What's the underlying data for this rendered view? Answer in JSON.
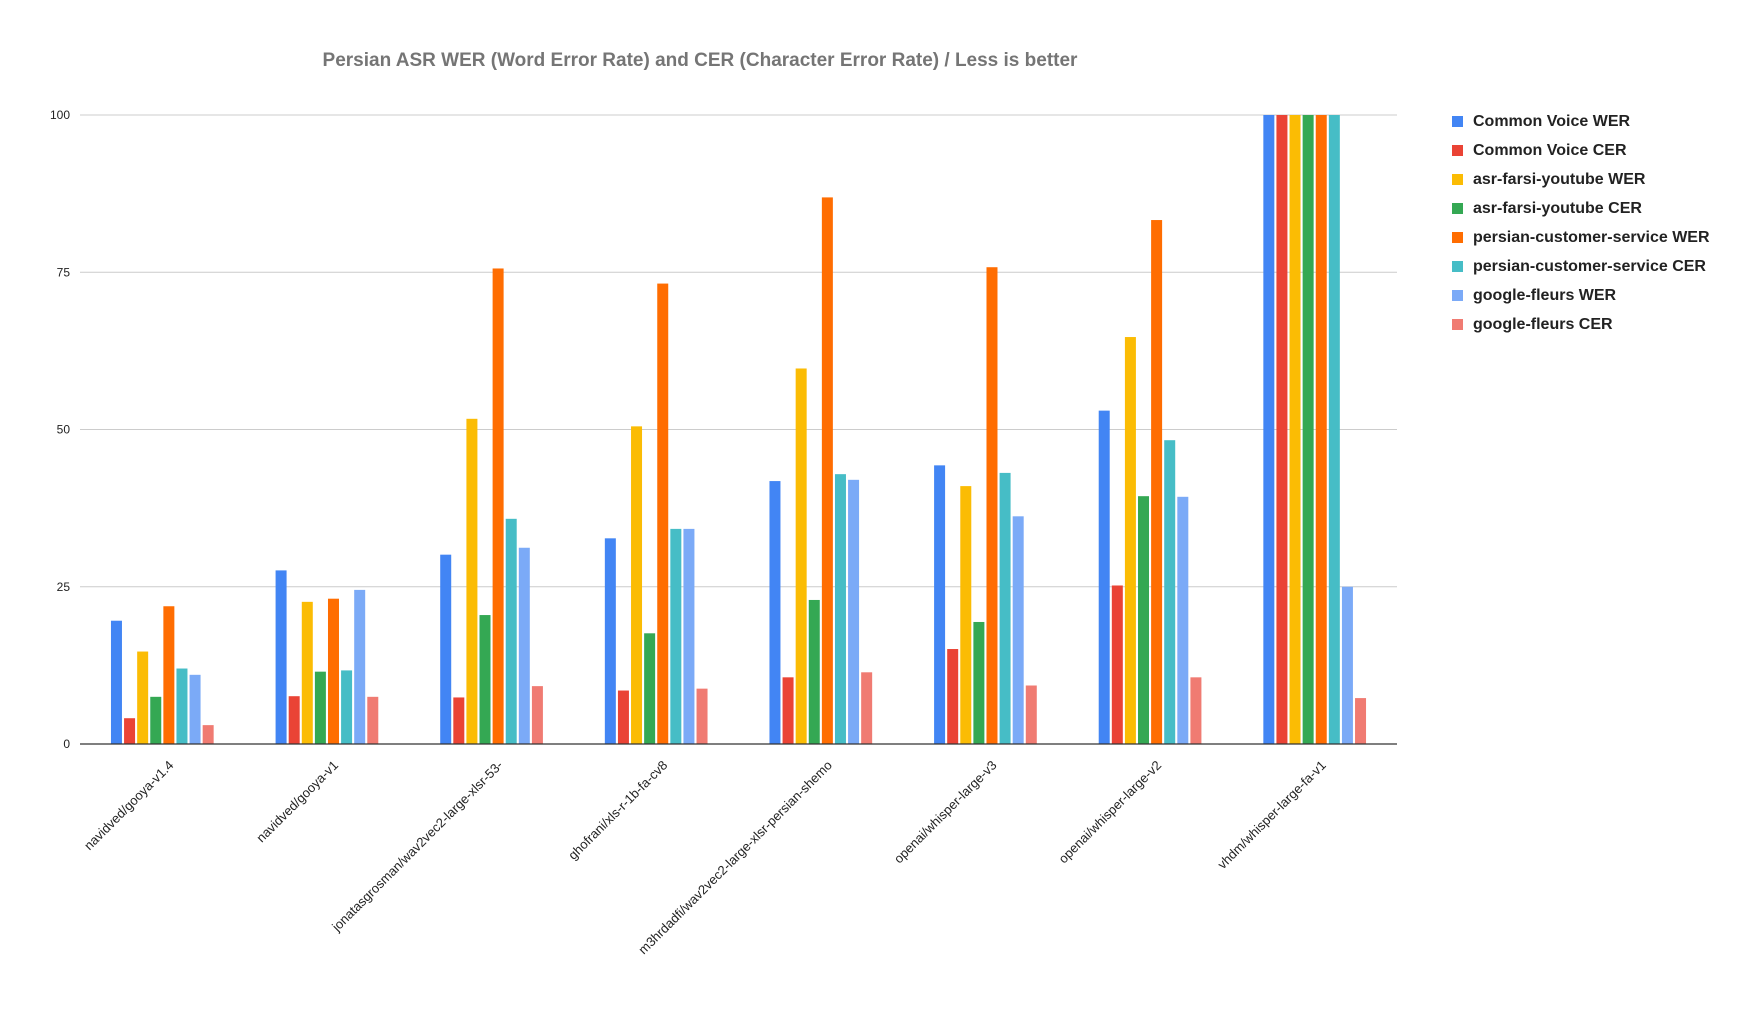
{
  "chart_data": {
    "type": "bar",
    "title": "Persian ASR WER (Word Error Rate) and CER (Character Error Rate) / Less is better",
    "xlabel": "",
    "ylabel": "",
    "ylim": [
      0,
      100
    ],
    "yticks": [
      0,
      25,
      50,
      75,
      100
    ],
    "grid": true,
    "legend_position": "right",
    "categories": [
      "navidved/gooya-v1.4",
      "navidved/gooya-v1",
      "jonatasgrosman/wav2vec2-large-xlsr-53-",
      "ghofrani/xls-r-1b-fa-cv8",
      "m3hrdadfi/wav2vec2-large-xlsr-persian-shemo",
      "openai/whisper-large-v3",
      "openai/whisper-large-v2",
      "vhdm/whisper-large-fa-v1"
    ],
    "series": [
      {
        "name": "Common Voice WER",
        "color": "#4285f4",
        "values": [
          19.6,
          27.6,
          30.1,
          32.7,
          41.8,
          44.3,
          53.0,
          100
        ]
      },
      {
        "name": "Common Voice CER",
        "color": "#ea4335",
        "values": [
          4.1,
          7.6,
          7.4,
          8.5,
          10.6,
          15.1,
          25.2,
          100
        ]
      },
      {
        "name": "asr-farsi-youtube WER",
        "color": "#fbbc04",
        "values": [
          14.7,
          22.6,
          51.7,
          50.5,
          59.7,
          41.0,
          64.7,
          100
        ]
      },
      {
        "name": "asr-farsi-youtube CER",
        "color": "#34a853",
        "values": [
          7.5,
          11.5,
          20.5,
          17.6,
          22.9,
          19.4,
          39.4,
          100
        ]
      },
      {
        "name": "persian-customer-service WER",
        "color": "#ff6d01",
        "values": [
          21.9,
          23.1,
          75.6,
          73.2,
          86.9,
          75.8,
          83.3,
          100
        ]
      },
      {
        "name": "persian-customer-service CER",
        "color": "#46bdc6",
        "values": [
          12.0,
          11.7,
          35.8,
          34.2,
          42.9,
          43.1,
          48.3,
          100
        ]
      },
      {
        "name": "google-fleurs WER",
        "color": "#7baaf7",
        "values": [
          11.0,
          24.5,
          31.2,
          34.2,
          42.0,
          36.2,
          39.3,
          25.0
        ]
      },
      {
        "name": "google-fleurs CER",
        "color": "#f07b72",
        "values": [
          3.0,
          7.5,
          9.2,
          8.8,
          11.4,
          9.3,
          10.6,
          7.3
        ]
      }
    ]
  }
}
